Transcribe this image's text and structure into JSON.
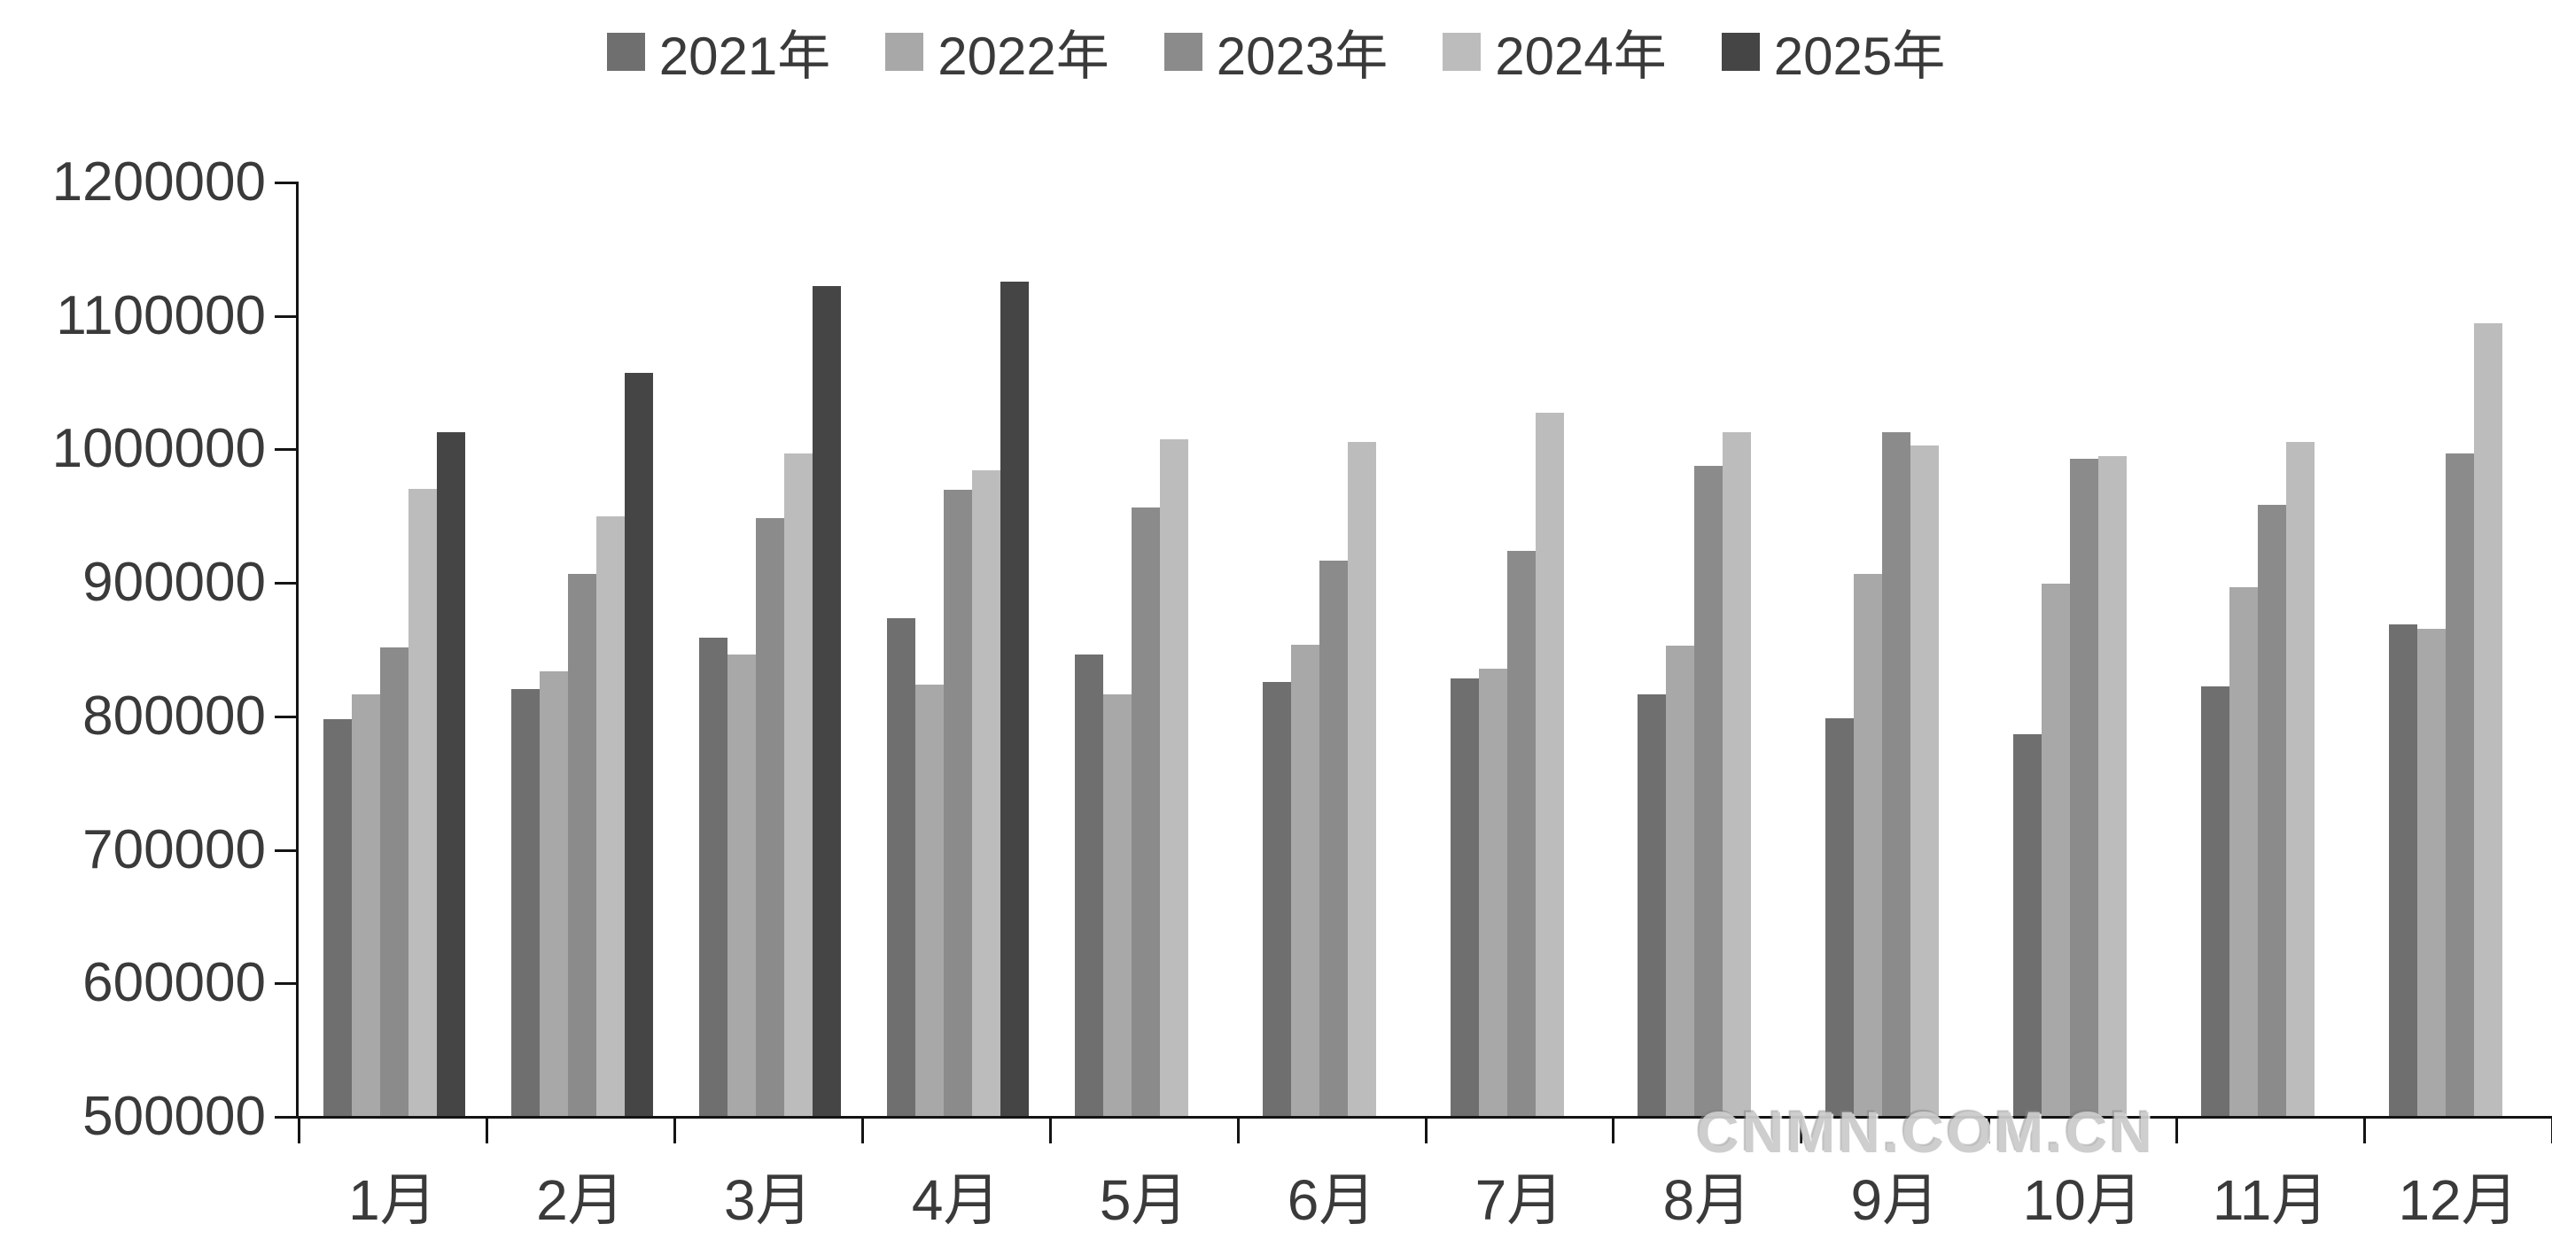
{
  "chart_data": {
    "type": "bar",
    "title": "",
    "xlabel": "",
    "ylabel": "",
    "categories": [
      "1月",
      "2月",
      "3月",
      "4月",
      "5月",
      "6月",
      "7月",
      "8月",
      "9月",
      "10月",
      "11月",
      "12月"
    ],
    "series": [
      {
        "name": "2021年",
        "color": "#6f6f6f",
        "values": [
          797000,
          820000,
          858000,
          873000,
          846000,
          825000,
          828000,
          816000,
          798000,
          786000,
          822000,
          868000
        ]
      },
      {
        "name": "2022年",
        "color": "#a8a8a8",
        "values": [
          816000,
          833000,
          846000,
          823000,
          816000,
          853000,
          835000,
          852000,
          906000,
          899000,
          896000,
          865000
        ]
      },
      {
        "name": "2023年",
        "color": "#8b8b8b",
        "values": [
          851000,
          906000,
          948000,
          969000,
          956000,
          916000,
          923000,
          987000,
          1012000,
          992000,
          958000,
          996000
        ]
      },
      {
        "name": "2024年",
        "color": "#bcbcbc",
        "values": [
          970000,
          949000,
          996000,
          984000,
          1007000,
          1005000,
          1027000,
          1012000,
          1002000,
          994000,
          1005000,
          1094000
        ]
      },
      {
        "name": "2025年",
        "color": "#454545",
        "values": [
          1012000,
          1057000,
          1122000,
          1125000,
          null,
          null,
          null,
          null,
          null,
          null,
          null,
          null
        ]
      }
    ],
    "ylim": [
      500000,
      1200000
    ],
    "ytick_step": 100000,
    "ytick_labels": [
      "1200000",
      "1100000",
      "1000000",
      "900000",
      "800000",
      "700000",
      "600000",
      "500000"
    ],
    "legend_position": "top",
    "grid": false
  },
  "watermark": {
    "text": "CNMN.COM.CN"
  }
}
